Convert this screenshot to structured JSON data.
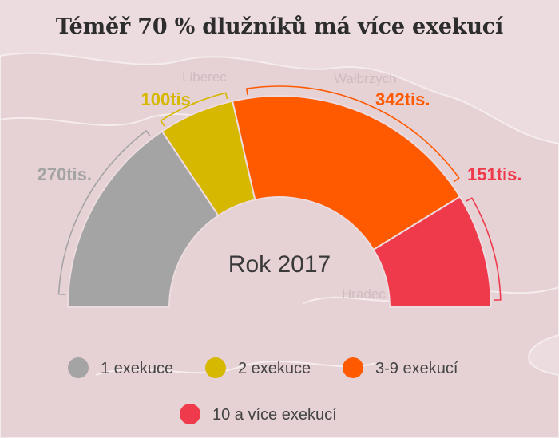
{
  "chart_data": {
    "type": "pie",
    "variant": "half-donut",
    "title": "Téměř 70 % dlužníků má více exekucí",
    "center_label": "Rok 2017",
    "categories": [
      "1 exekuce",
      "2 exekuce",
      "3-9 exekucí",
      "10 a více exekucí"
    ],
    "values": [
      270,
      100,
      342,
      151
    ],
    "value_labels": [
      "270tis.",
      "100tis.",
      "342tis.",
      "151tis."
    ],
    "unit": "tis.",
    "colors": [
      "#a4a4a4",
      "#d6b800",
      "#ff5a00",
      "#ef3a4c"
    ],
    "label_colors": [
      "#a4a4a4",
      "#d6b800",
      "#ff5a00",
      "#ef3a4c"
    ],
    "legend_position": "bottom"
  },
  "background_map": {
    "place_labels": [
      "Liberec",
      "Wałbrzych",
      "Hradec Králové"
    ]
  }
}
